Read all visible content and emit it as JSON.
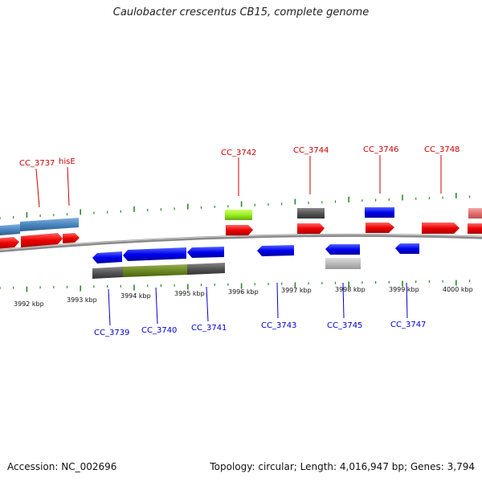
{
  "title": "Caulobacter crescentus CB15, complete genome",
  "footer": {
    "accession": "Accession: NC_002696",
    "stats": "Topology: circular; Length: 4,016,947 bp; Genes: 3,794"
  },
  "colors": {
    "top_label": "#cc0000",
    "bottom_label": "#0000cc",
    "tick": "#2a8a2a",
    "backbone": "#888888"
  },
  "kbp_ticks": [
    "3992 kbp",
    "3993 kbp",
    "3994 kbp",
    "3995 kbp",
    "3996 kbp",
    "3997 kbp",
    "3998 kbp",
    "3999 kbp",
    "4000 kbp"
  ],
  "top_genes": [
    "CC_3737",
    "hisE",
    "CC_3742",
    "CC_3744",
    "CC_3746",
    "CC_3748"
  ],
  "bottom_genes": [
    "CC_3739",
    "CC_3740",
    "CC_3741",
    "CC_3743",
    "CC_3745",
    "CC_3747"
  ]
}
